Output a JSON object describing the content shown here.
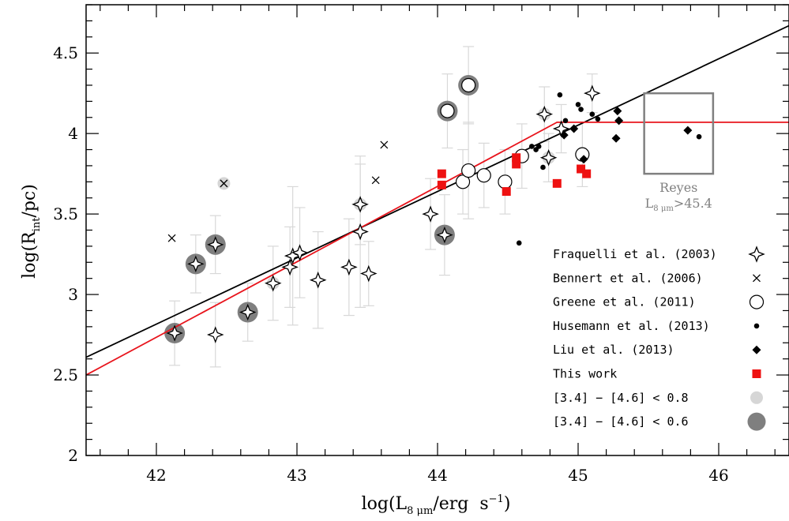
{
  "chart_data": {
    "type": "scatter",
    "xlabel": {
      "main": "log(L",
      "sub": "8 μm",
      "tail": "/erg  s",
      "sup": "−1",
      "close": ")"
    },
    "ylabel": {
      "main": "log(R",
      "sub": "int",
      "tail": "/pc)"
    },
    "xlim": [
      41.5,
      46.5
    ],
    "ylim": [
      2.0,
      4.8
    ],
    "x_ticks": [
      "42",
      "43",
      "44",
      "45",
      "46"
    ],
    "y_ticks": [
      "2",
      "2.5",
      "3",
      "3.5",
      "4",
      "4.5"
    ],
    "grid": false,
    "legend_position": "bottom-right",
    "colors": {
      "axis": "#000000",
      "fit_black": "#000000",
      "fit_red": "#e8141c",
      "this_work": "#ee1111",
      "error_bar": "#d8d8d8",
      "halo_light": "#d6d6d6",
      "halo_dark": "#7f7f7f",
      "reyes_box": "#808080"
    },
    "lines": [
      {
        "name": "black-fit",
        "color": "#000000",
        "points": [
          [
            41.5,
            2.61
          ],
          [
            46.5,
            4.67
          ]
        ]
      },
      {
        "name": "red-fit",
        "color": "#e8141c",
        "points": [
          [
            41.5,
            2.5
          ],
          [
            44.85,
            4.07
          ],
          [
            46.5,
            4.07
          ]
        ]
      }
    ],
    "box": {
      "x": [
        45.47,
        45.96
      ],
      "y": [
        3.75,
        4.25
      ],
      "label_line1": "Reyes",
      "label_line2": {
        "main": "L",
        "sub": "8 μm",
        "tail": ">45.4"
      }
    },
    "series": [
      {
        "name": "Fraquelli et al. (2003)",
        "marker": "star4",
        "points": [
          {
            "x": 42.13,
            "y": 2.76,
            "err": 0.2,
            "halo": "dark"
          },
          {
            "x": 42.28,
            "y": 3.19,
            "err": 0.18,
            "halo": "dark"
          },
          {
            "x": 42.42,
            "y": 3.31,
            "err": 0.18,
            "halo": "dark"
          },
          {
            "x": 42.42,
            "y": 2.75,
            "err": 0.2
          },
          {
            "x": 42.65,
            "y": 2.89,
            "err": 0.18,
            "halo": "dark"
          },
          {
            "x": 42.83,
            "y": 3.07,
            "err": 0.23,
            "halo": "light"
          },
          {
            "x": 42.95,
            "y": 3.17,
            "err": 0.25
          },
          {
            "x": 42.97,
            "y": 3.24,
            "err": 0.43
          },
          {
            "x": 43.02,
            "y": 3.26,
            "err": 0.28
          },
          {
            "x": 43.15,
            "y": 3.09,
            "err": 0.3
          },
          {
            "x": 43.37,
            "y": 3.17,
            "err": 0.3
          },
          {
            "x": 43.45,
            "y": 3.39,
            "err": 0.47
          },
          {
            "x": 43.45,
            "y": 3.56,
            "err": 0.25,
            "halo": "light"
          },
          {
            "x": 43.51,
            "y": 3.13,
            "err": 0.2
          },
          {
            "x": 43.95,
            "y": 3.5,
            "err": 0.22
          },
          {
            "x": 44.05,
            "y": 3.37,
            "err": 0.25,
            "halo": "dark"
          },
          {
            "x": 44.76,
            "y": 4.12,
            "err": 0.17,
            "halo": "light"
          },
          {
            "x": 44.79,
            "y": 3.85,
            "err": 0.15,
            "halo": "light"
          },
          {
            "x": 44.88,
            "y": 4.03,
            "err": 0.15
          },
          {
            "x": 45.1,
            "y": 4.25,
            "err": 0.12
          }
        ]
      },
      {
        "name": "Bennert et al. (2006)",
        "marker": "cross",
        "points": [
          {
            "x": 42.11,
            "y": 3.35
          },
          {
            "x": 42.48,
            "y": 3.69,
            "halo": "light"
          },
          {
            "x": 43.56,
            "y": 3.71
          },
          {
            "x": 43.62,
            "y": 3.93
          }
        ]
      },
      {
        "name": "Greene et al. (2011)",
        "marker": "circle",
        "points": [
          {
            "x": 44.07,
            "y": 4.14,
            "err": 0.23,
            "halo": "dark"
          },
          {
            "x": 44.22,
            "y": 4.3,
            "err": 0.24,
            "halo": "dark"
          },
          {
            "x": 44.18,
            "y": 3.7,
            "err": 0.2
          },
          {
            "x": 44.22,
            "y": 3.77,
            "err": 0.3
          },
          {
            "x": 44.33,
            "y": 3.74,
            "err": 0.2
          },
          {
            "x": 44.48,
            "y": 3.7,
            "err": 0.2
          },
          {
            "x": 44.6,
            "y": 3.86,
            "err": 0.2
          },
          {
            "x": 45.03,
            "y": 3.87,
            "err": 0.2
          }
        ]
      },
      {
        "name": "Husemann et al. (2013)",
        "marker": "dot",
        "points": [
          {
            "x": 44.58,
            "y": 3.32
          },
          {
            "x": 44.67,
            "y": 3.92
          },
          {
            "x": 44.7,
            "y": 3.9
          },
          {
            "x": 44.72,
            "y": 3.92
          },
          {
            "x": 44.75,
            "y": 3.79
          },
          {
            "x": 44.87,
            "y": 4.24
          },
          {
            "x": 44.91,
            "y": 4.08
          },
          {
            "x": 45.0,
            "y": 4.18
          },
          {
            "x": 45.02,
            "y": 4.15
          },
          {
            "x": 45.1,
            "y": 4.12
          },
          {
            "x": 45.14,
            "y": 4.09
          },
          {
            "x": 45.86,
            "y": 3.98
          }
        ]
      },
      {
        "name": "Liu et al. (2013)",
        "marker": "diamond",
        "points": [
          {
            "x": 44.9,
            "y": 3.99
          },
          {
            "x": 44.97,
            "y": 4.03
          },
          {
            "x": 45.04,
            "y": 3.84
          },
          {
            "x": 45.28,
            "y": 4.14
          },
          {
            "x": 45.29,
            "y": 4.08
          },
          {
            "x": 45.27,
            "y": 3.97
          },
          {
            "x": 45.78,
            "y": 4.02
          }
        ]
      },
      {
        "name": "This work",
        "marker": "square",
        "points": [
          {
            "x": 44.03,
            "y": 3.75
          },
          {
            "x": 44.03,
            "y": 3.68
          },
          {
            "x": 44.49,
            "y": 3.64
          },
          {
            "x": 44.56,
            "y": 3.81
          },
          {
            "x": 44.56,
            "y": 3.85
          },
          {
            "x": 44.85,
            "y": 3.69
          },
          {
            "x": 45.02,
            "y": 3.78
          },
          {
            "x": 45.06,
            "y": 3.75
          }
        ]
      }
    ],
    "legend": [
      {
        "label": "Fraquelli et al. (2003)",
        "marker": "star4"
      },
      {
        "label": "Bennert et al. (2006)",
        "marker": "cross"
      },
      {
        "label": "Greene et al. (2011)",
        "marker": "circle"
      },
      {
        "label": "Husemann et al. (2013)",
        "marker": "dot"
      },
      {
        "label": "Liu et al. (2013)",
        "marker": "diamond"
      },
      {
        "label": "This work",
        "marker": "square"
      },
      {
        "label": "[3.4] − [4.6] < 0.8",
        "marker": "halo-light"
      },
      {
        "label": "[3.4] − [4.6] < 0.6",
        "marker": "halo-dark"
      }
    ]
  }
}
